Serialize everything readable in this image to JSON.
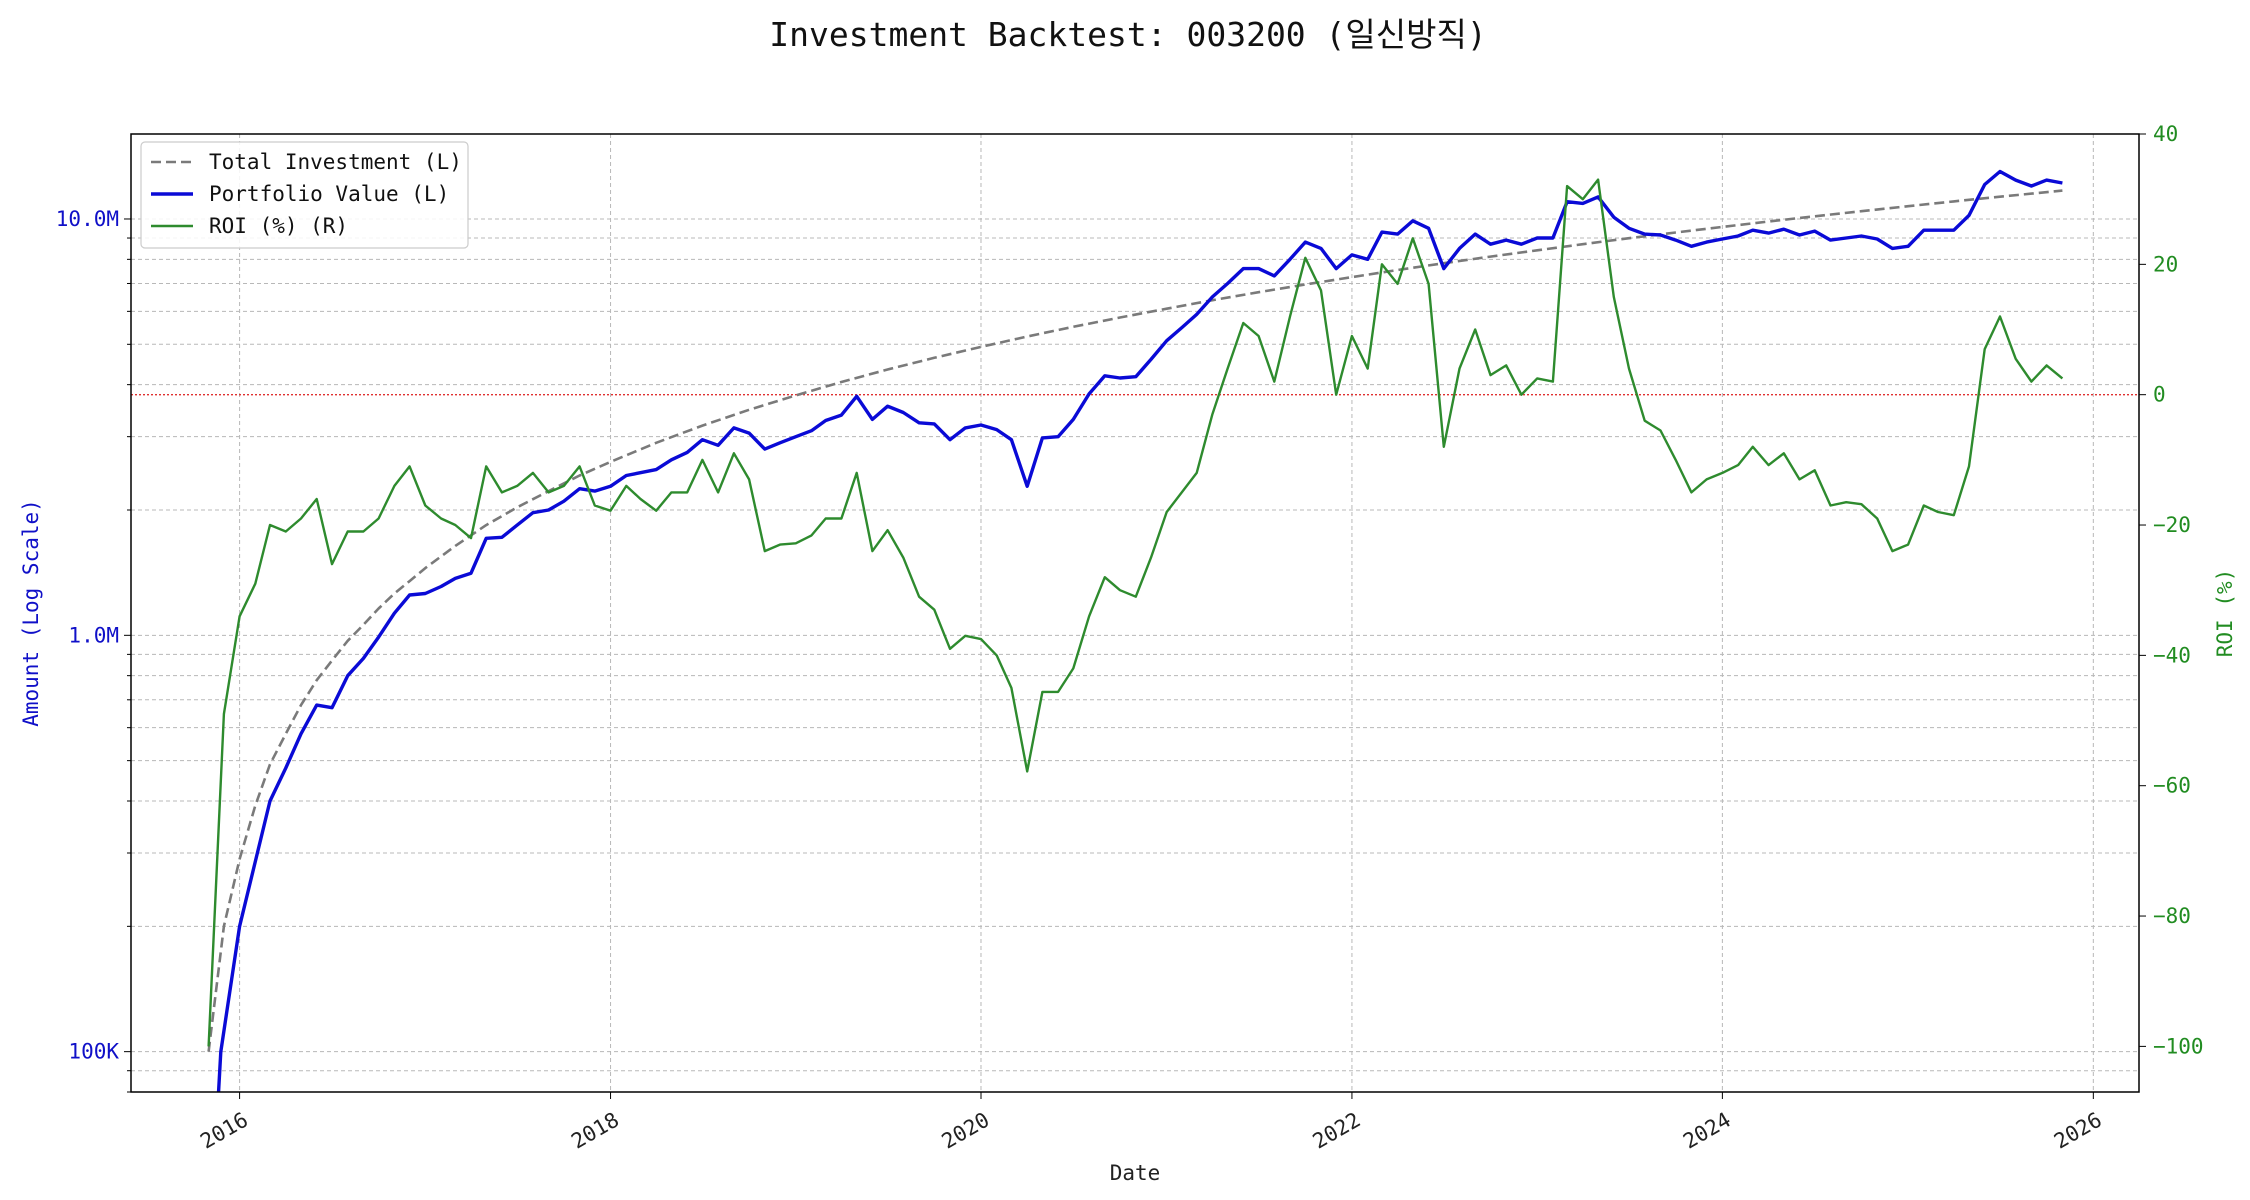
{
  "chart_data": {
    "type": "line",
    "title": "Investment Backtest: 003200 (일신방직)",
    "xlabel": "Date",
    "ylabel_left": "Amount (Log Scale)",
    "ylabel_right": "ROI (%)",
    "left_axis": {
      "scale": "log",
      "ylim": [
        80000,
        16000000
      ],
      "ticks": [
        {
          "value": 100000,
          "label": "100K"
        },
        {
          "value": 1000000,
          "label": "1.0M"
        },
        {
          "value": 10000000,
          "label": "10.0M"
        }
      ]
    },
    "right_axis": {
      "scale": "linear",
      "ylim": [
        -107,
        40
      ],
      "ticks": [
        -100,
        -80,
        -60,
        -40,
        -20,
        0,
        20,
        40
      ]
    },
    "x_axis": {
      "type": "date",
      "xlim": [
        "2015-06-01",
        "2026-04-01"
      ],
      "ticks": [
        {
          "value": "2016-01-01",
          "label": "2016"
        },
        {
          "value": "2018-01-01",
          "label": "2018"
        },
        {
          "value": "2020-01-01",
          "label": "2020"
        },
        {
          "value": "2022-01-01",
          "label": "2022"
        },
        {
          "value": "2024-01-01",
          "label": "2024"
        },
        {
          "value": "2026-01-01",
          "label": "2026"
        }
      ]
    },
    "grid": true,
    "legend_position": "top-left",
    "zero_line": {
      "value": 0,
      "axis": "right",
      "color": "#e03030",
      "style": "dotted"
    },
    "series": [
      {
        "name": "Total Investment (L)",
        "axis": "left",
        "color": "#7a7a7a",
        "style": "dashed",
        "x": [
          "2015-11-01",
          "2015-12-01",
          "2016-01-01",
          "2016-02-01",
          "2016-03-01",
          "2016-04-01",
          "2016-05-01",
          "2016-06-01",
          "2016-07-01",
          "2016-08-01",
          "2016-09-01",
          "2016-10-01",
          "2016-11-01",
          "2016-12-01",
          "2017-01-01",
          "2017-03-01",
          "2017-05-01",
          "2017-07-01",
          "2017-09-01",
          "2017-11-01",
          "2018-01-01",
          "2018-04-01",
          "2018-07-01",
          "2018-10-01",
          "2019-01-01",
          "2019-04-01",
          "2019-07-01",
          "2019-10-01",
          "2020-01-01",
          "2020-04-01",
          "2020-07-01",
          "2020-10-01",
          "2021-01-01",
          "2021-04-01",
          "2021-07-01",
          "2021-10-01",
          "2022-01-01",
          "2022-04-01",
          "2022-07-01",
          "2022-10-01",
          "2023-01-01",
          "2023-04-01",
          "2023-07-01",
          "2023-10-01",
          "2024-01-01",
          "2024-04-01",
          "2024-07-01",
          "2024-10-01",
          "2025-01-01",
          "2025-04-01",
          "2025-07-01",
          "2025-11-01"
        ],
        "values": [
          100000,
          200000,
          290000,
          390000,
          490000,
          580000,
          680000,
          780000,
          870000,
          970000,
          1060000,
          1160000,
          1260000,
          1350000,
          1450000,
          1640000,
          1840000,
          2030000,
          2220000,
          2420000,
          2610000,
          2900000,
          3190000,
          3480000,
          3770000,
          4060000,
          4350000,
          4640000,
          4930000,
          5220000,
          5510000,
          5800000,
          6090000,
          6380000,
          6670000,
          6960000,
          7250000,
          7540000,
          7830000,
          8120000,
          8410000,
          8700000,
          8990000,
          9280000,
          9570000,
          9860000,
          10150000,
          10440000,
          10730000,
          11020000,
          11310000,
          11700000
        ]
      },
      {
        "name": "Portfolio Value (L)",
        "axis": "left",
        "color": "#0a0ad6",
        "style": "solid",
        "x": [
          "2015-11-20",
          "2015-11-25",
          "2016-01-01",
          "2016-03-01",
          "2016-04-01",
          "2016-05-01",
          "2016-06-01",
          "2016-07-01",
          "2016-08-01",
          "2016-09-01",
          "2016-10-01",
          "2016-11-01",
          "2016-12-01",
          "2017-01-01",
          "2017-02-01",
          "2017-03-01",
          "2017-04-01",
          "2017-05-01",
          "2017-06-01",
          "2017-07-01",
          "2017-08-01",
          "2017-09-01",
          "2017-10-01",
          "2017-11-01",
          "2017-12-01",
          "2018-01-01",
          "2018-02-01",
          "2018-04-01",
          "2018-05-01",
          "2018-06-01",
          "2018-07-01",
          "2018-08-01",
          "2018-09-01",
          "2018-10-01",
          "2018-11-01",
          "2018-12-01",
          "2019-01-01",
          "2019-02-01",
          "2019-03-01",
          "2019-04-01",
          "2019-05-01",
          "2019-06-01",
          "2019-07-01",
          "2019-08-01",
          "2019-09-01",
          "2019-10-01",
          "2019-11-01",
          "2019-12-01",
          "2020-01-01",
          "2020-02-01",
          "2020-03-01",
          "2020-04-01",
          "2020-05-01",
          "2020-06-01",
          "2020-07-01",
          "2020-08-01",
          "2020-09-01",
          "2020-10-01",
          "2020-11-01",
          "2020-12-01",
          "2021-01-01",
          "2021-02-01",
          "2021-03-01",
          "2021-04-01",
          "2021-05-01",
          "2021-06-01",
          "2021-07-01",
          "2021-08-01",
          "2021-09-01",
          "2021-10-01",
          "2021-11-01",
          "2021-12-01",
          "2022-01-01",
          "2022-02-01",
          "2022-03-01",
          "2022-04-01",
          "2022-05-01",
          "2022-06-01",
          "2022-07-01",
          "2022-08-01",
          "2022-09-01",
          "2022-10-01",
          "2022-11-01",
          "2022-12-01",
          "2023-01-01",
          "2023-02-01",
          "2023-03-01",
          "2023-04-01",
          "2023-05-01",
          "2023-06-01",
          "2023-07-01",
          "2023-08-01",
          "2023-09-01",
          "2023-10-01",
          "2023-11-01",
          "2023-12-01",
          "2024-01-01",
          "2024-02-01",
          "2024-03-01",
          "2024-04-01",
          "2024-05-01",
          "2024-06-01",
          "2024-07-01",
          "2024-08-01",
          "2024-09-01",
          "2024-10-01",
          "2024-11-01",
          "2024-12-01",
          "2025-01-01",
          "2025-02-01",
          "2025-03-01",
          "2025-04-01",
          "2025-05-01",
          "2025-06-01",
          "2025-07-01",
          "2025-08-01",
          "2025-09-01",
          "2025-10-01",
          "2025-11-01"
        ],
        "values": [
          78000,
          100000,
          200000,
          400000,
          480000,
          580000,
          680000,
          670000,
          800000,
          880000,
          990000,
          1130000,
          1250000,
          1260000,
          1310000,
          1370000,
          1410000,
          1710000,
          1720000,
          1840000,
          1970000,
          2000000,
          2100000,
          2250000,
          2220000,
          2280000,
          2420000,
          2500000,
          2640000,
          2750000,
          2950000,
          2860000,
          3150000,
          3060000,
          2800000,
          2900000,
          3000000,
          3100000,
          3280000,
          3380000,
          3750000,
          3300000,
          3550000,
          3430000,
          3240000,
          3220000,
          2950000,
          3150000,
          3200000,
          3120000,
          2950000,
          2280000,
          2980000,
          3000000,
          3300000,
          3800000,
          4200000,
          4150000,
          4180000,
          4600000,
          5100000,
          5500000,
          5900000,
          6500000,
          7000000,
          7600000,
          7600000,
          7300000,
          8000000,
          8800000,
          8500000,
          7600000,
          8200000,
          8000000,
          9300000,
          9200000,
          9900000,
          9500000,
          7600000,
          8500000,
          9200000,
          8700000,
          8900000,
          8700000,
          9000000,
          9000000,
          11000000,
          10900000,
          11300000,
          10100000,
          9500000,
          9200000,
          9150000,
          8900000,
          8600000,
          8800000,
          8950000,
          9100000,
          9400000,
          9250000,
          9450000,
          9150000,
          9350000,
          8900000,
          9000000,
          9100000,
          8950000,
          8500000,
          8600000,
          9400000,
          9400000,
          9400000,
          10200000,
          12100000,
          13000000,
          12400000,
          12000000,
          12400000,
          12200000
        ]
      },
      {
        "name": "ROI (%) (R)",
        "axis": "right",
        "color": "#2e8b2e",
        "style": "solid",
        "x": [
          "2015-11-01",
          "2015-12-01",
          "2016-01-01",
          "2016-02-01",
          "2016-03-01",
          "2016-04-01",
          "2016-05-01",
          "2016-06-01",
          "2016-07-01",
          "2016-08-01",
          "2016-09-01",
          "2016-10-01",
          "2016-11-01",
          "2016-12-01",
          "2017-01-01",
          "2017-02-01",
          "2017-03-01",
          "2017-04-01",
          "2017-05-01",
          "2017-06-01",
          "2017-07-01",
          "2017-08-01",
          "2017-09-01",
          "2017-10-01",
          "2017-11-01",
          "2017-12-01",
          "2018-01-01",
          "2018-02-01",
          "2018-03-01",
          "2018-04-01",
          "2018-05-01",
          "2018-06-01",
          "2018-07-01",
          "2018-08-01",
          "2018-09-01",
          "2018-10-01",
          "2018-11-01",
          "2018-12-01",
          "2019-01-01",
          "2019-02-01",
          "2019-03-01",
          "2019-04-01",
          "2019-05-01",
          "2019-06-01",
          "2019-07-01",
          "2019-08-01",
          "2019-09-01",
          "2019-10-01",
          "2019-11-01",
          "2019-12-01",
          "2020-01-01",
          "2020-02-01",
          "2020-03-01",
          "2020-04-01",
          "2020-05-01",
          "2020-06-01",
          "2020-07-01",
          "2020-08-01",
          "2020-09-01",
          "2020-10-01",
          "2020-11-01",
          "2020-12-01",
          "2021-01-01",
          "2021-03-01",
          "2021-04-01",
          "2021-05-01",
          "2021-06-01",
          "2021-07-01",
          "2021-08-01",
          "2021-09-01",
          "2021-10-01",
          "2021-11-01",
          "2021-12-01",
          "2022-01-01",
          "2022-02-01",
          "2022-03-01",
          "2022-04-01",
          "2022-05-01",
          "2022-06-01",
          "2022-07-01",
          "2022-08-01",
          "2022-09-01",
          "2022-10-01",
          "2022-11-01",
          "2022-12-01",
          "2023-01-01",
          "2023-02-01",
          "2023-03-01",
          "2023-04-01",
          "2023-05-01",
          "2023-06-01",
          "2023-07-01",
          "2023-08-01",
          "2023-09-01",
          "2023-10-01",
          "2023-11-01",
          "2023-12-01",
          "2024-01-01",
          "2024-02-01",
          "2024-03-01",
          "2024-04-01",
          "2024-05-01",
          "2024-06-01",
          "2024-07-01",
          "2024-08-01",
          "2024-09-01",
          "2024-10-01",
          "2024-11-01",
          "2024-12-01",
          "2025-01-01",
          "2025-02-01",
          "2025-03-01",
          "2025-04-01",
          "2025-05-01",
          "2025-06-01",
          "2025-07-01",
          "2025-08-01",
          "2025-09-01",
          "2025-10-01",
          "2025-11-01"
        ],
        "values": [
          -100,
          -49,
          -34,
          -29,
          -20,
          -21,
          -19,
          -16,
          -26,
          -21,
          -21,
          -19,
          -14,
          -11,
          -17,
          -19,
          -20,
          -22,
          -11,
          -15,
          -14,
          -12,
          -15,
          -14,
          -11,
          -17,
          -17.8,
          -14,
          -16,
          -17.8,
          -15,
          -15,
          -10,
          -15,
          -9,
          -13,
          -24,
          -23,
          -22.8,
          -21.6,
          -19,
          -19,
          -12,
          -24,
          -20.8,
          -25,
          -31,
          -33,
          -39,
          -37,
          -37.5,
          -40,
          -45,
          -57.8,
          -45.6,
          -45.6,
          -42,
          -34,
          -28,
          -30,
          -31,
          -25,
          -18,
          -12,
          -3,
          4,
          11,
          9,
          2,
          12,
          21,
          16,
          0,
          9,
          4,
          20,
          17,
          24,
          17,
          -8,
          4,
          10,
          3,
          4.5,
          0,
          2.5,
          2,
          32,
          30,
          33,
          15,
          4,
          -4,
          -5.5,
          -10,
          -15,
          -13,
          -12,
          -10.8,
          -8,
          -10.8,
          -9,
          -13,
          -11.6,
          -17,
          -16.5,
          -16.8,
          -19,
          -24,
          -23,
          -17,
          -18,
          -18.5,
          -11,
          7,
          12,
          5.5,
          2,
          4.5,
          2.5
        ]
      }
    ]
  }
}
